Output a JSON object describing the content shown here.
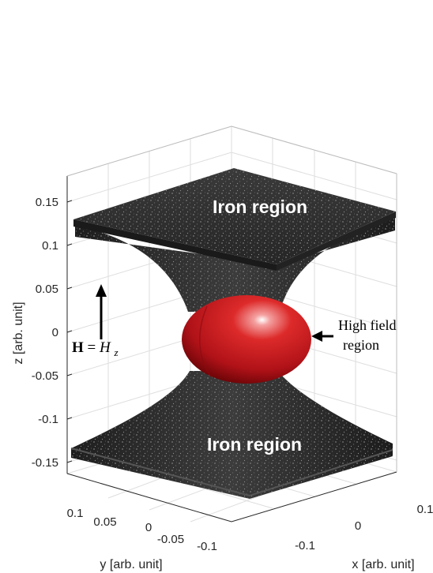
{
  "z_axis": {
    "label": "z [arb. unit]",
    "ticks": [
      "0.15",
      "0.1",
      "0.05",
      "0",
      "-0.05",
      "-0.1",
      "-0.15"
    ]
  },
  "y_axis": {
    "label": "y [arb. unit]",
    "ticks": [
      "0.1",
      "0.05",
      "0",
      "-0.05",
      "-0.1"
    ]
  },
  "x_axis": {
    "label": "x [arb. unit]",
    "ticks": [
      "0.1",
      "0",
      "-0.1"
    ]
  },
  "labels": {
    "iron_top": "Iron region",
    "iron_bottom": "Iron region",
    "high_field_line1": "High field",
    "high_field_line2": "region",
    "field_bold": "H",
    "field_eq": " = ",
    "field_var": "H",
    "field_sub": "z"
  },
  "colors": {
    "iron": "#2b2b2b",
    "sphere": "#c8161d",
    "grid": "#dedede",
    "axis": "#262626"
  }
}
